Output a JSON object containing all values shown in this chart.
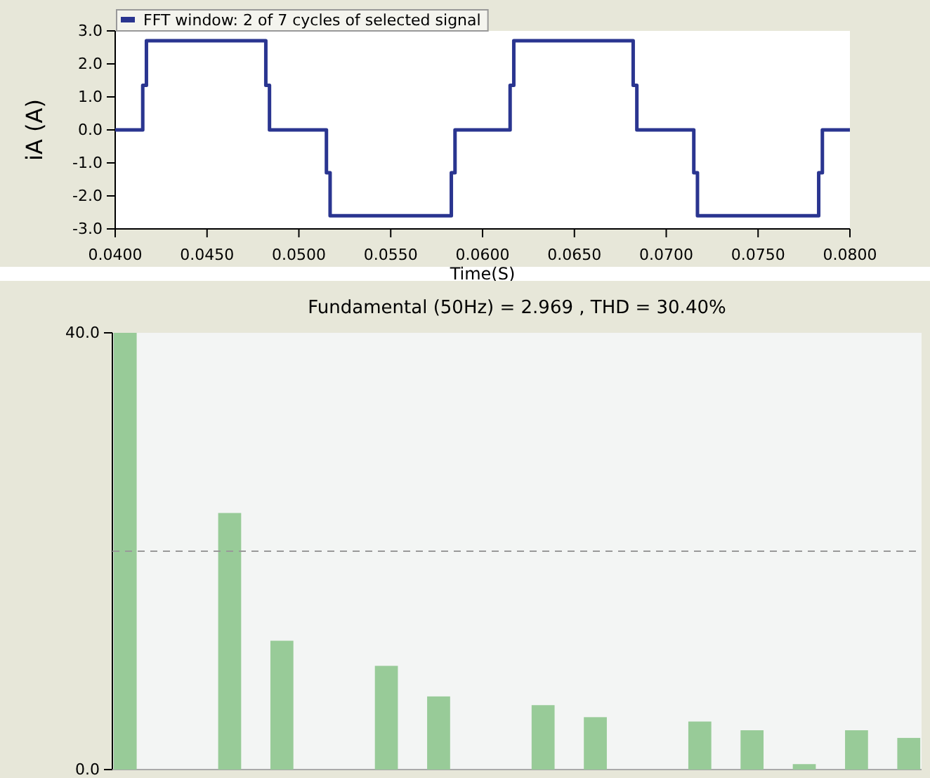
{
  "chart_data": [
    {
      "type": "line",
      "ylabel": "iA (A)",
      "xlabel": "Time(S)",
      "legend": "top left",
      "xlim": [
        0.04,
        0.08
      ],
      "xticks": [
        {
          "value": 0.04,
          "label": "0.0400"
        },
        {
          "value": 0.045,
          "label": "0.0450"
        },
        {
          "value": 0.05,
          "label": "0.0500"
        },
        {
          "value": 0.055,
          "label": "0.0550"
        },
        {
          "value": 0.06,
          "label": "0.0600"
        },
        {
          "value": 0.065,
          "label": "0.0650"
        },
        {
          "value": 0.07,
          "label": "0.0700"
        },
        {
          "value": 0.075,
          "label": "0.0750"
        },
        {
          "value": 0.08,
          "label": "0.0800"
        }
      ],
      "ylim": [
        -3,
        3
      ],
      "yticks": [
        {
          "value": -3,
          "label": "-3.0"
        },
        {
          "value": -2,
          "label": "-2.0"
        },
        {
          "value": -1,
          "label": "-1.0"
        },
        {
          "value": 0,
          "label": "0.0"
        },
        {
          "value": 1,
          "label": "1.0"
        },
        {
          "value": 2,
          "label": "2.0"
        },
        {
          "value": 3,
          "label": "3.0"
        }
      ],
      "series": [
        {
          "name": "FFT window: 2 of 7 cycles of selected signal",
          "color": "#2a3590",
          "x": [
            0.04,
            0.0415,
            0.0415,
            0.0417,
            0.0417,
            0.0482,
            0.0482,
            0.0484,
            0.0484,
            0.0515,
            0.0515,
            0.0517,
            0.0517,
            0.0583,
            0.0583,
            0.0585,
            0.0585,
            0.0615,
            0.0615,
            0.0617,
            0.0617,
            0.0682,
            0.0682,
            0.0684,
            0.0684,
            0.0715,
            0.0715,
            0.0717,
            0.0717,
            0.0783,
            0.0783,
            0.0785,
            0.0785,
            0.08
          ],
          "values": [
            0,
            0,
            1.35,
            1.35,
            2.7,
            2.7,
            1.35,
            1.35,
            0,
            0,
            -1.3,
            -1.3,
            -2.6,
            -2.6,
            -1.3,
            -1.3,
            0,
            0,
            1.35,
            1.35,
            2.7,
            2.7,
            1.35,
            1.35,
            0,
            0,
            -1.3,
            -1.3,
            -2.6,
            -2.6,
            -1.3,
            -1.3,
            0,
            0
          ]
        }
      ]
    },
    {
      "type": "bar",
      "title": "Fundamental (50Hz) = 2.969 , THD = 30.40%",
      "tick_labels": "y",
      "ylim": [
        0,
        40
      ],
      "yticks": [
        {
          "value": 0,
          "label": "0.0"
        },
        {
          "value": 40,
          "label": "40.0"
        }
      ],
      "categories": [
        null,
        null,
        null,
        null,
        null,
        null,
        null,
        null,
        null,
        null,
        null,
        null,
        null,
        null,
        null,
        null,
        null,
        null,
        null,
        null,
        null,
        null,
        null,
        null,
        null,
        null,
        null,
        null,
        null,
        null,
        null
      ],
      "values": [
        40,
        0,
        0,
        0,
        23.5,
        0,
        11.8,
        0,
        0,
        0,
        9.5,
        0,
        6.7,
        0,
        0,
        0,
        5.9,
        0,
        4.8,
        0,
        0,
        0,
        4.4,
        0,
        3.6,
        0,
        0.5,
        0,
        3.6,
        0,
        2.9
      ],
      "color": "#98cb98",
      "ref_lines": [
        {
          "axis": "y",
          "value": 20,
          "color": "#999999",
          "line_style": "dashed"
        }
      ]
    }
  ]
}
